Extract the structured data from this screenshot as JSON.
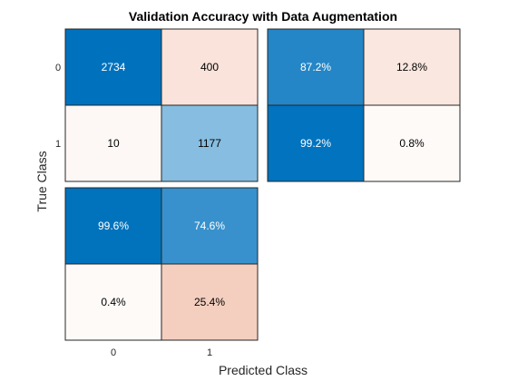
{
  "chart_data": {
    "type": "heatmap",
    "title": "Validation Accuracy with Data Augmentation",
    "xlabel": "Predicted Class",
    "ylabel": "True Class",
    "classes": [
      "0",
      "1"
    ],
    "confusion_matrix": {
      "rows": [
        "0",
        "1"
      ],
      "columns": [
        "0",
        "1"
      ],
      "values": [
        [
          2734,
          400
        ],
        [
          10,
          1177
        ]
      ],
      "labels": [
        [
          "2734",
          "400"
        ],
        [
          "10",
          "1177"
        ]
      ]
    },
    "row_summary": {
      "values": [
        [
          87.2,
          12.8
        ],
        [
          99.2,
          0.8
        ]
      ],
      "labels": [
        [
          "87.2%",
          "12.8%"
        ],
        [
          "99.2%",
          "0.8%"
        ]
      ]
    },
    "column_summary": {
      "values": [
        [
          99.6,
          74.6
        ],
        [
          0.4,
          25.4
        ]
      ],
      "labels": [
        [
          "99.6%",
          "74.6%"
        ],
        [
          "0.4%",
          "25.4%"
        ]
      ]
    },
    "colors": {
      "blue": "#0072bd",
      "orange": "#d95319",
      "white": "#ffffff",
      "border": "#262626",
      "light_text": "#ffffff",
      "dark_text": "#000000"
    }
  }
}
